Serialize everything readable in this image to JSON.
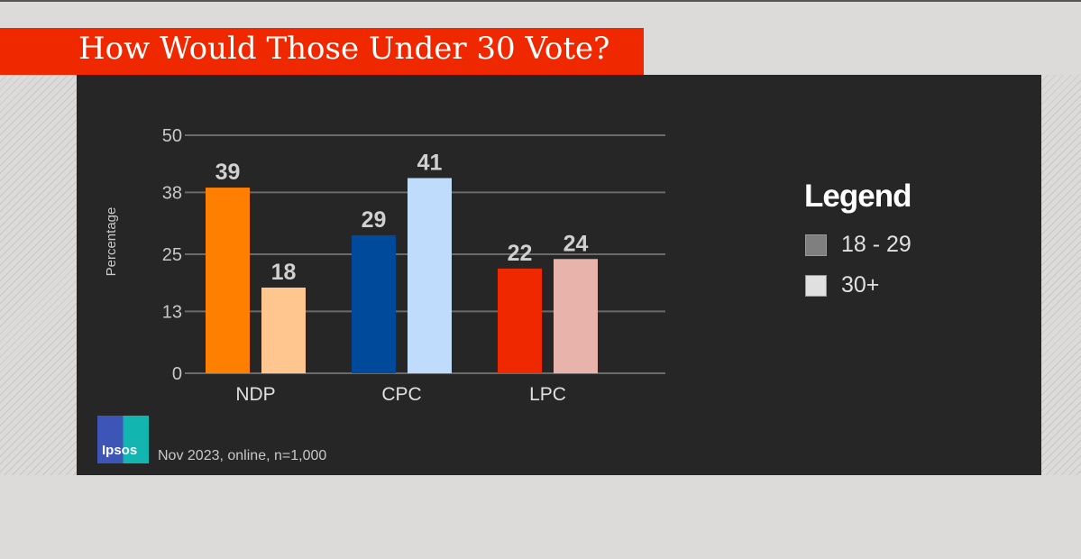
{
  "title": "How Would Those Under 30 Vote?",
  "footnote": "Nov 2023, online, n=1,000",
  "logo_text": "Ipsos",
  "chart_data": {
    "type": "bar",
    "title": "How Would Those Under 30 Vote?",
    "ylabel": "Percentage",
    "xlabel": "",
    "ylim": [
      0,
      50
    ],
    "yticks": [
      0,
      13,
      25,
      38,
      50
    ],
    "grid": true,
    "categories": [
      "NDP",
      "CPC",
      "LPC"
    ],
    "series": [
      {
        "name": "18 - 29",
        "values": [
          39,
          29,
          22
        ],
        "colors": [
          "#ff7f00",
          "#004a9c",
          "#f02800"
        ]
      },
      {
        "name": "30+",
        "values": [
          18,
          41,
          24
        ],
        "colors": [
          "#ffc68f",
          "#bfdcfc",
          "#e8b3aa"
        ]
      }
    ],
    "legend": {
      "title": "Legend",
      "placement": "right",
      "swatch_colors": [
        "#7f7f7f",
        "#e0e0e0"
      ]
    }
  }
}
